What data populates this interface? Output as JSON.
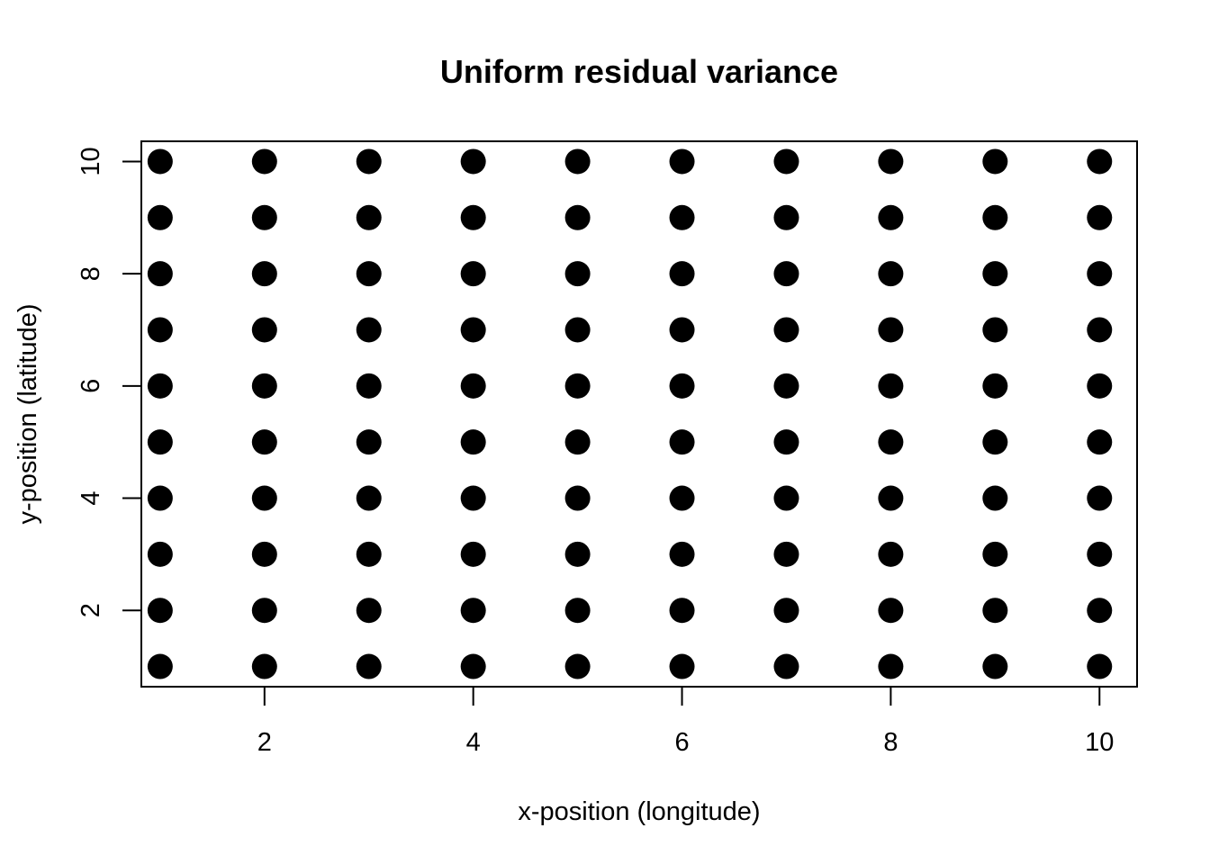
{
  "chart_data": {
    "type": "scatter",
    "title": "Uniform residual variance",
    "xlabel": "x-position (longitude)",
    "ylabel": "y-position (latitude)",
    "xlim": [
      0.82,
      10.36
    ],
    "ylim": [
      0.64,
      10.36
    ],
    "xticks": [
      2,
      4,
      6,
      8,
      10
    ],
    "yticks": [
      2,
      4,
      6,
      8,
      10
    ],
    "xtick_labels": [
      "2",
      "4",
      "6",
      "8",
      "10"
    ],
    "ytick_labels": [
      "2",
      "4",
      "6",
      "8",
      "10"
    ],
    "grid": false,
    "legend": "none",
    "marker": "filled-circle",
    "point_color": "#000000",
    "series": [
      {
        "x": [
          1,
          2,
          3,
          4,
          5,
          6,
          7,
          8,
          9,
          10,
          1,
          2,
          3,
          4,
          5,
          6,
          7,
          8,
          9,
          10,
          1,
          2,
          3,
          4,
          5,
          6,
          7,
          8,
          9,
          10,
          1,
          2,
          3,
          4,
          5,
          6,
          7,
          8,
          9,
          10,
          1,
          2,
          3,
          4,
          5,
          6,
          7,
          8,
          9,
          10,
          1,
          2,
          3,
          4,
          5,
          6,
          7,
          8,
          9,
          10,
          1,
          2,
          3,
          4,
          5,
          6,
          7,
          8,
          9,
          10,
          1,
          2,
          3,
          4,
          5,
          6,
          7,
          8,
          9,
          10,
          1,
          2,
          3,
          4,
          5,
          6,
          7,
          8,
          9,
          10,
          1,
          2,
          3,
          4,
          5,
          6,
          7,
          8,
          9,
          10
        ],
        "y": [
          1,
          1,
          1,
          1,
          1,
          1,
          1,
          1,
          1,
          1,
          2,
          2,
          2,
          2,
          2,
          2,
          2,
          2,
          2,
          2,
          3,
          3,
          3,
          3,
          3,
          3,
          3,
          3,
          3,
          3,
          4,
          4,
          4,
          4,
          4,
          4,
          4,
          4,
          4,
          4,
          5,
          5,
          5,
          5,
          5,
          5,
          5,
          5,
          5,
          5,
          6,
          6,
          6,
          6,
          6,
          6,
          6,
          6,
          6,
          6,
          7,
          7,
          7,
          7,
          7,
          7,
          7,
          7,
          7,
          7,
          8,
          8,
          8,
          8,
          8,
          8,
          8,
          8,
          8,
          8,
          9,
          9,
          9,
          9,
          9,
          9,
          9,
          9,
          9,
          9,
          10,
          10,
          10,
          10,
          10,
          10,
          10,
          10,
          10,
          10
        ]
      }
    ]
  }
}
